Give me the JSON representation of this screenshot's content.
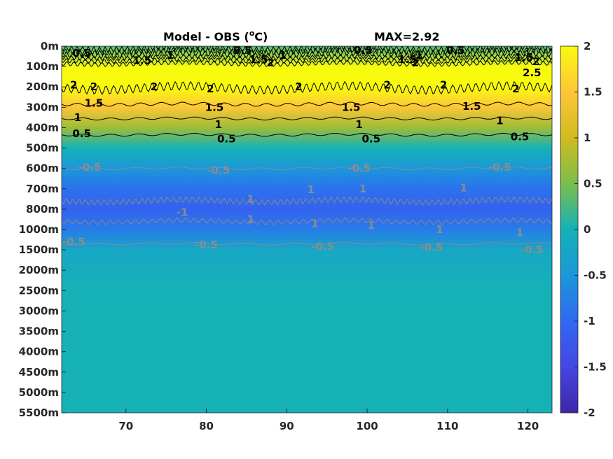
{
  "chart_data": {
    "type": "heatmap",
    "title": "Model - OBS (",
    "title_superscript": "o",
    "title_unit_suffix": "C)",
    "max_annotation": "MAX=2.92",
    "x_ticks": [
      70,
      80,
      90,
      100,
      110,
      120
    ],
    "xlim": [
      62,
      123
    ],
    "y_tick_labels": [
      "0m",
      "100m",
      "200m",
      "300m",
      "400m",
      "500m",
      "600m",
      "700m",
      "800m",
      "1000m",
      "1500m",
      "2000m",
      "2500m",
      "3000m",
      "3500m",
      "4000m",
      "4500m",
      "5000m",
      "5500m"
    ],
    "colorbar": {
      "ticks": [
        2,
        1.5,
        1,
        0.5,
        0,
        -0.5,
        -1,
        -1.5,
        -2
      ],
      "tick_labels": [
        "2",
        "1.5",
        "1",
        "0.5",
        "0",
        "-0.5",
        "-1",
        "-1.5",
        "-2"
      ],
      "range": [
        -2,
        2
      ],
      "colormap": "parula"
    },
    "depth_profile": [
      {
        "depth": "0m",
        "value": 0.3
      },
      {
        "depth": "100m",
        "value": 2.4
      },
      {
        "depth": "200m",
        "value": 2.2
      },
      {
        "depth": "300m",
        "value": 1.5
      },
      {
        "depth": "400m",
        "value": 0.7
      },
      {
        "depth": "500m",
        "value": 0.0
      },
      {
        "depth": "600m",
        "value": -0.5
      },
      {
        "depth": "700m",
        "value": -0.9
      },
      {
        "depth": "800m",
        "value": -1.1
      },
      {
        "depth": "1000m",
        "value": -0.8
      },
      {
        "depth": "1500m",
        "value": -0.2
      },
      {
        "depth": "2000m",
        "value": -0.1
      },
      {
        "depth": "2500m",
        "value": 0.0
      },
      {
        "depth": "5500m",
        "value": 0.0
      }
    ],
    "contour_labels": [
      {
        "text": "0.5",
        "x": 64.5,
        "depth_index": 0.35,
        "color": "black"
      },
      {
        "text": "1.5",
        "x": 72.0,
        "depth_index": 0.7,
        "color": "black"
      },
      {
        "text": "1",
        "x": 75.5,
        "depth_index": 0.45,
        "color": "black"
      },
      {
        "text": "0.5",
        "x": 84.5,
        "depth_index": 0.2,
        "color": "black"
      },
      {
        "text": "1.5",
        "x": 86.5,
        "depth_index": 0.65,
        "color": "black"
      },
      {
        "text": "1",
        "x": 89.5,
        "depth_index": 0.45,
        "color": "black"
      },
      {
        "text": "2",
        "x": 88.0,
        "depth_index": 0.8,
        "color": "black"
      },
      {
        "text": "0.5",
        "x": 99.5,
        "depth_index": 0.2,
        "color": "black"
      },
      {
        "text": "1.5",
        "x": 105.0,
        "depth_index": 0.65,
        "color": "black"
      },
      {
        "text": "1",
        "x": 106.5,
        "depth_index": 0.45,
        "color": "black"
      },
      {
        "text": "2",
        "x": 106.0,
        "depth_index": 0.8,
        "color": "black"
      },
      {
        "text": "0.5",
        "x": 111.0,
        "depth_index": 0.2,
        "color": "black"
      },
      {
        "text": "1.5",
        "x": 119.5,
        "depth_index": 0.55,
        "color": "black"
      },
      {
        "text": "2",
        "x": 121.0,
        "depth_index": 0.75,
        "color": "black"
      },
      {
        "text": "2.5",
        "x": 120.5,
        "depth_index": 1.3,
        "color": "black"
      },
      {
        "text": "2",
        "x": 63.5,
        "depth_index": 1.9,
        "color": "black"
      },
      {
        "text": "2",
        "x": 66.0,
        "depth_index": 2.0,
        "color": "black"
      },
      {
        "text": "2",
        "x": 73.5,
        "depth_index": 2.0,
        "color": "black"
      },
      {
        "text": "2",
        "x": 80.5,
        "depth_index": 2.1,
        "color": "black"
      },
      {
        "text": "2",
        "x": 91.5,
        "depth_index": 2.0,
        "color": "black"
      },
      {
        "text": "2",
        "x": 102.5,
        "depth_index": 1.9,
        "color": "black"
      },
      {
        "text": "2",
        "x": 109.5,
        "depth_index": 1.9,
        "color": "black"
      },
      {
        "text": "2",
        "x": 118.5,
        "depth_index": 2.1,
        "color": "black"
      },
      {
        "text": "1.5",
        "x": 66.0,
        "depth_index": 2.8,
        "color": "black"
      },
      {
        "text": "1.5",
        "x": 81.0,
        "depth_index": 3.0,
        "color": "black"
      },
      {
        "text": "1.5",
        "x": 98.0,
        "depth_index": 3.0,
        "color": "black"
      },
      {
        "text": "1.5",
        "x": 113.0,
        "depth_index": 2.95,
        "color": "black"
      },
      {
        "text": "1",
        "x": 64.0,
        "depth_index": 3.5,
        "color": "black"
      },
      {
        "text": "1",
        "x": 81.5,
        "depth_index": 3.85,
        "color": "black"
      },
      {
        "text": "1",
        "x": 99.0,
        "depth_index": 3.85,
        "color": "black"
      },
      {
        "text": "1",
        "x": 116.5,
        "depth_index": 3.65,
        "color": "black"
      },
      {
        "text": "0.5",
        "x": 64.5,
        "depth_index": 4.3,
        "color": "black"
      },
      {
        "text": "0.5",
        "x": 82.5,
        "depth_index": 4.55,
        "color": "black"
      },
      {
        "text": "0.5",
        "x": 100.5,
        "depth_index": 4.55,
        "color": "black"
      },
      {
        "text": "0.5",
        "x": 119.0,
        "depth_index": 4.45,
        "color": "black"
      },
      {
        "text": "-0.5",
        "x": 65.5,
        "depth_index": 5.95,
        "color": "gray"
      },
      {
        "text": "-0.5",
        "x": 81.5,
        "depth_index": 6.1,
        "color": "gray"
      },
      {
        "text": "-0.5",
        "x": 99.0,
        "depth_index": 6.0,
        "color": "gray"
      },
      {
        "text": "-0.5",
        "x": 116.5,
        "depth_index": 5.95,
        "color": "gray"
      },
      {
        "text": "-1",
        "x": 77.0,
        "depth_index": 8.15,
        "color": "gray"
      },
      {
        "text": "1",
        "x": 85.5,
        "depth_index": 7.5,
        "color": "gray"
      },
      {
        "text": "1",
        "x": 85.5,
        "depth_index": 8.5,
        "color": "gray"
      },
      {
        "text": "1",
        "x": 93.0,
        "depth_index": 7.05,
        "color": "gray"
      },
      {
        "text": "1",
        "x": 99.5,
        "depth_index": 7.0,
        "color": "gray"
      },
      {
        "text": "1",
        "x": 93.5,
        "depth_index": 8.7,
        "color": "gray"
      },
      {
        "text": "1",
        "x": 100.5,
        "depth_index": 8.8,
        "color": "gray"
      },
      {
        "text": "1",
        "x": 112.0,
        "depth_index": 6.95,
        "color": "gray"
      },
      {
        "text": "1",
        "x": 109.0,
        "depth_index": 9.0,
        "color": "gray"
      },
      {
        "text": "1",
        "x": 119.0,
        "depth_index": 9.15,
        "color": "gray"
      },
      {
        "text": "-0.5",
        "x": 63.5,
        "depth_index": 9.6,
        "color": "gray"
      },
      {
        "text": "-0.5",
        "x": 80.0,
        "depth_index": 9.75,
        "color": "gray"
      },
      {
        "text": "-0.5",
        "x": 94.5,
        "depth_index": 9.85,
        "color": "gray"
      },
      {
        "text": "-0.5",
        "x": 108.0,
        "depth_index": 9.9,
        "color": "gray"
      },
      {
        "text": "-0.5",
        "x": 120.5,
        "depth_index": 10.0,
        "color": "gray"
      }
    ]
  }
}
